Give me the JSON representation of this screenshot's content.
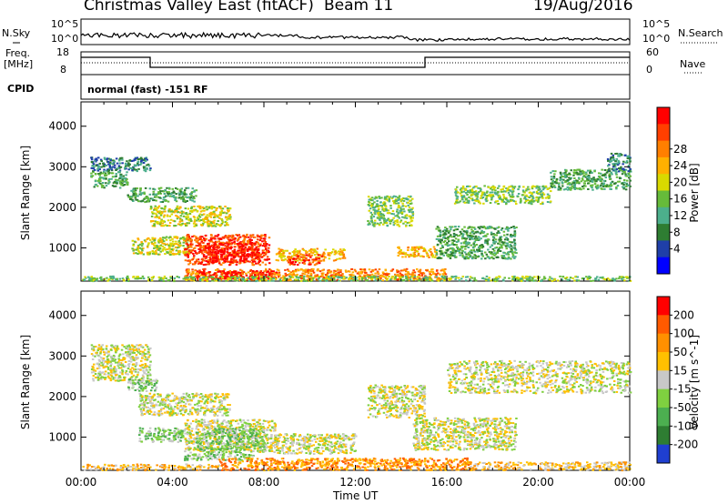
{
  "header": {
    "radar": "Christmas Valley East (fitACF)",
    "beam": "Beam 11",
    "date": "19/Aug/2016"
  },
  "top_panels": {
    "nsky_label": "N.Sky",
    "nsky_ticks": [
      "10^5",
      "10^0"
    ],
    "nsearch_label": "N.Search",
    "nsearch_ticks": [
      "10^5",
      "10^0"
    ],
    "freq_label_1": "Freq.",
    "freq_label_2": "[MHz]",
    "freq_ticks": [
      "18",
      "8"
    ],
    "nave_label": "Nave",
    "nave_ticks": [
      "60",
      "0"
    ],
    "cpid_label": "CPID",
    "cpid_value": "normal (fast) -151 RF"
  },
  "chart_data": [
    {
      "type": "heatmap",
      "title": "",
      "xlabel": "Time UT",
      "ylabel": "Slant Range [km]",
      "x_ticks": [
        "00:00",
        "04:00",
        "08:00",
        "12:00",
        "16:00",
        "20:00",
        "00:00"
      ],
      "xlim_hours": [
        0,
        24
      ],
      "y_ticks": [
        1000,
        2000,
        3000,
        4000
      ],
      "ylim": [
        180,
        4600
      ],
      "colorbar": {
        "label": "Power [dB]",
        "ticks": [
          4,
          8,
          12,
          16,
          20,
          24,
          28
        ],
        "colors": [
          "#0000ff",
          "#1f3fa8",
          "#2e7d32",
          "#4caf8c",
          "#66bb3a",
          "#d9d900",
          "#ffb000",
          "#ff7f00",
          "#ff3f00",
          "#ff0000"
        ]
      },
      "scatter_blobs": [
        {
          "x": [
            0.4,
            2.0
          ],
          "y": [
            2500,
            2900
          ],
          "level": 3
        },
        {
          "x": [
            0.4,
            3.0
          ],
          "y": [
            2900,
            3250
          ],
          "level": 2
        },
        {
          "x": [
            2.0,
            5.0
          ],
          "y": [
            2150,
            2500
          ],
          "level": 3
        },
        {
          "x": [
            3.0,
            6.5
          ],
          "y": [
            1550,
            2050
          ],
          "level": 5
        },
        {
          "x": [
            2.2,
            4.8
          ],
          "y": [
            850,
            1300
          ],
          "level": 5
        },
        {
          "x": [
            4.5,
            8.2
          ],
          "y": [
            600,
            1350
          ],
          "level": 8
        },
        {
          "x": [
            5.5,
            7.8
          ],
          "y": [
            650,
            1150
          ],
          "level": 9
        },
        {
          "x": [
            8.5,
            11.5
          ],
          "y": [
            700,
            1000
          ],
          "level": 6
        },
        {
          "x": [
            9.0,
            10.5
          ],
          "y": [
            600,
            850
          ],
          "level": 8
        },
        {
          "x": [
            12.5,
            14.5
          ],
          "y": [
            1550,
            2300
          ],
          "level": 4
        },
        {
          "x": [
            13.8,
            15.5
          ],
          "y": [
            780,
            1050
          ],
          "level": 6
        },
        {
          "x": [
            15.5,
            19.0
          ],
          "y": [
            750,
            1550
          ],
          "level": 3
        },
        {
          "x": [
            16.3,
            20.5
          ],
          "y": [
            2100,
            2550
          ],
          "level": 4
        },
        {
          "x": [
            20.5,
            24.0
          ],
          "y": [
            2450,
            2950
          ],
          "level": 3
        },
        {
          "x": [
            23.0,
            24.0
          ],
          "y": [
            2900,
            3350
          ],
          "level": 2
        },
        {
          "x": [
            4.5,
            16.0
          ],
          "y": [
            220,
            500
          ],
          "level": 7
        },
        {
          "x": [
            5.0,
            8.5
          ],
          "y": [
            250,
            450
          ],
          "level": 9
        },
        {
          "x": [
            0.0,
            24.0
          ],
          "y": [
            200,
            320
          ],
          "level": 4
        }
      ]
    },
    {
      "type": "heatmap",
      "title": "",
      "xlabel": "Time UT",
      "ylabel": "Slant Range [km]",
      "x_ticks": [
        "00:00",
        "04:00",
        "08:00",
        "12:00",
        "16:00",
        "20:00",
        "00:00"
      ],
      "xlim_hours": [
        0,
        24
      ],
      "y_ticks": [
        1000,
        2000,
        3000,
        4000
      ],
      "ylim": [
        180,
        4600
      ],
      "colorbar": {
        "label": "Velocity [m s^-1]",
        "ticks": [
          200,
          100,
          50,
          15,
          -15,
          -50,
          -100,
          -200
        ],
        "colors": [
          "#1f3fd0",
          "#2e7d32",
          "#4caf50",
          "#7fd040",
          "#c8c8c8",
          "#ffc000",
          "#ff9000",
          "#ff5a00",
          "#ff0000"
        ]
      },
      "scatter_blobs": [
        {
          "x": [
            0.4,
            3.0
          ],
          "y": [
            2400,
            3300
          ],
          "level": 4
        },
        {
          "x": [
            2.0,
            3.3
          ],
          "y": [
            2150,
            2450
          ],
          "level": 3
        },
        {
          "x": [
            2.5,
            6.5
          ],
          "y": [
            1550,
            2100
          ],
          "level": 4
        },
        {
          "x": [
            2.5,
            4.5
          ],
          "y": [
            900,
            1250
          ],
          "level": 3
        },
        {
          "x": [
            4.5,
            8.5
          ],
          "y": [
            650,
            1450
          ],
          "level": 4
        },
        {
          "x": [
            5.0,
            8.0
          ],
          "y": [
            700,
            1250
          ],
          "level": 3
        },
        {
          "x": [
            4.5,
            7.5
          ],
          "y": [
            450,
            650
          ],
          "level": 3
        },
        {
          "x": [
            8.5,
            12.0
          ],
          "y": [
            600,
            1100
          ],
          "level": 4
        },
        {
          "x": [
            12.5,
            15.0
          ],
          "y": [
            1500,
            2300
          ],
          "level": 4
        },
        {
          "x": [
            14.5,
            19.0
          ],
          "y": [
            700,
            1500
          ],
          "level": 4
        },
        {
          "x": [
            16.0,
            24.0
          ],
          "y": [
            2100,
            2900
          ],
          "level": 4
        },
        {
          "x": [
            6.0,
            17.0
          ],
          "y": [
            200,
            500
          ],
          "level": 6
        },
        {
          "x": [
            17.0,
            24.0
          ],
          "y": [
            200,
            400
          ],
          "level": 5
        },
        {
          "x": [
            0.0,
            6.0
          ],
          "y": [
            200,
            350
          ],
          "level": 5
        }
      ]
    }
  ]
}
